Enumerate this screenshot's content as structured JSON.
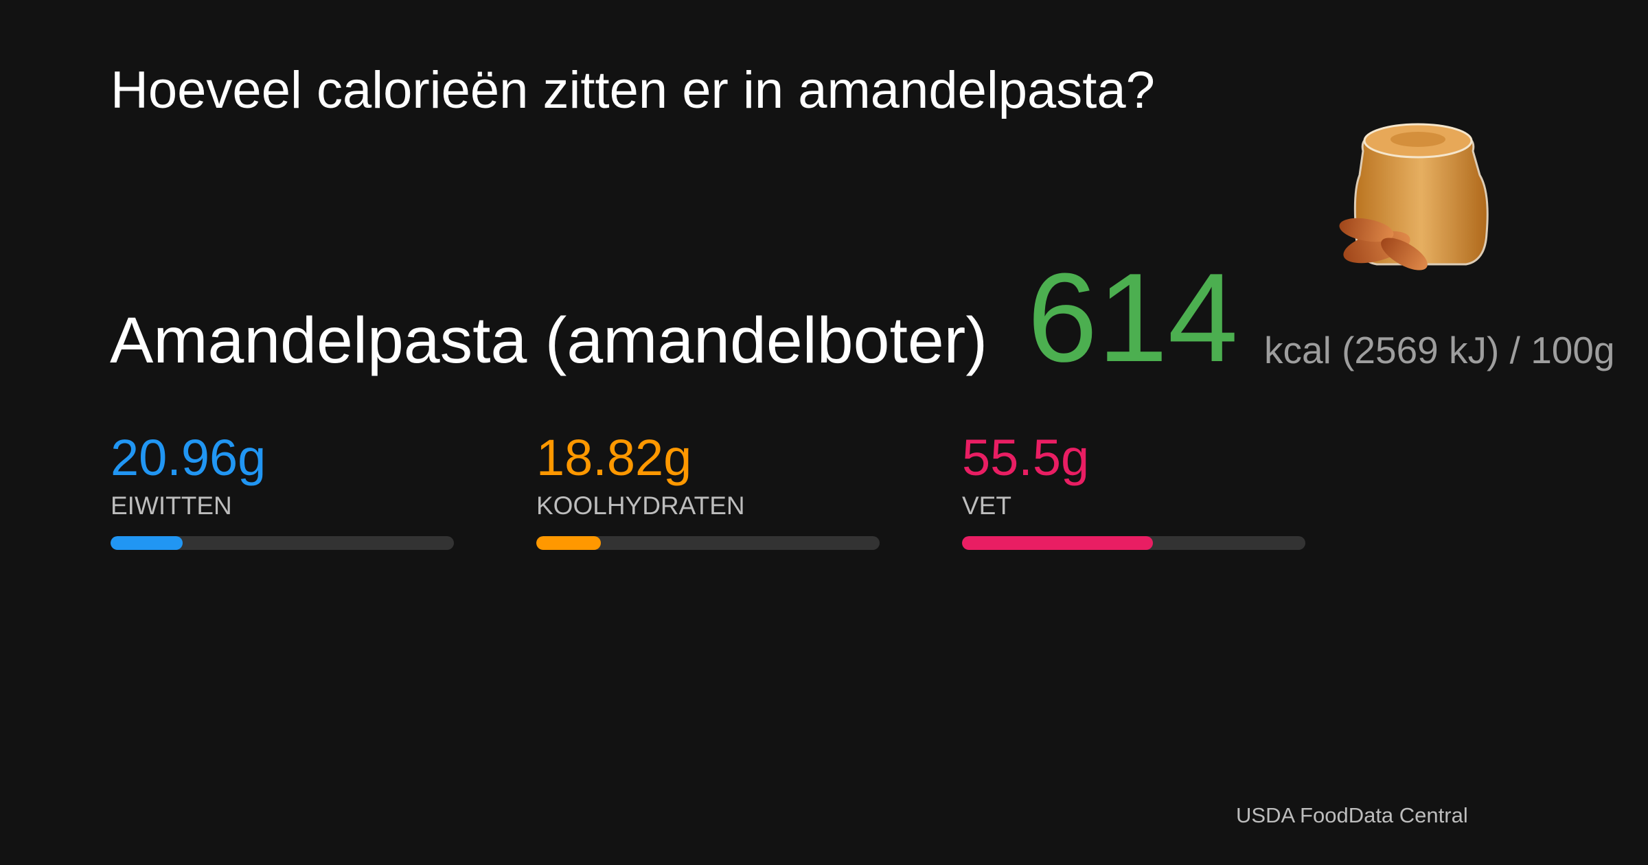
{
  "title": "Hoeveel calorieën zitten er in amandelpasta?",
  "food": {
    "name": "Amandelpasta (amandelboter)",
    "kcal": 614,
    "energy_text": "kcal (2569 kJ) / ",
    "serving": {
      "value": 100,
      "label": "100g"
    },
    "kcal_color": "#4caf50"
  },
  "macros": [
    {
      "label": "EIWITTEN",
      "value": 20.96,
      "value_label": "20.96g",
      "color": "#2196f3"
    },
    {
      "label": "KOOLHYDRATEN",
      "value": 18.82,
      "value_label": "18.82g",
      "color": "#ff9800"
    },
    {
      "label": "VET",
      "value": 55.5,
      "value_label": "55.5g",
      "color": "#e91e63"
    }
  ],
  "source": "USDA FoodData Central"
}
